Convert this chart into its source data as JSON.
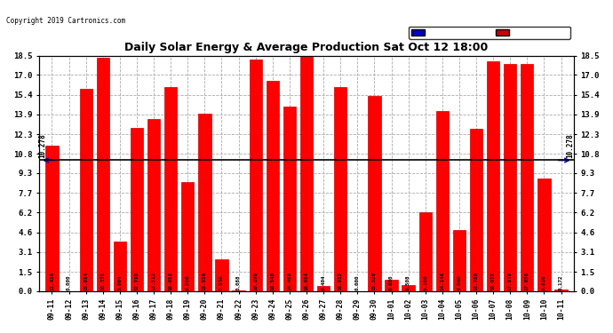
{
  "title": "Daily Solar Energy & Average Production Sat Oct 12 18:00",
  "copyright": "Copyright 2019 Cartronics.com",
  "average_line": 10.278,
  "average_label": "10.278",
  "bar_color": "#FF0000",
  "average_line_color": "#000000",
  "average_arrow_color": "#0000CC",
  "bar_edge_color": "#CC0000",
  "background_color": "#FFFFFF",
  "grid_color": "#AAAAAA",
  "categories": [
    "09-11",
    "09-12",
    "09-13",
    "09-14",
    "09-15",
    "09-16",
    "09-17",
    "09-18",
    "09-19",
    "09-20",
    "09-21",
    "09-22",
    "09-23",
    "09-24",
    "09-25",
    "09-26",
    "09-27",
    "09-28",
    "09-29",
    "09-30",
    "10-01",
    "10-02",
    "10-03",
    "10-04",
    "10-05",
    "10-06",
    "10-07",
    "10-08",
    "10-09",
    "10-10",
    "10-11"
  ],
  "values": [
    11.436,
    0.0,
    15.884,
    18.332,
    3.904,
    12.796,
    13.512,
    16.052,
    8.556,
    13.936,
    2.536,
    0.088,
    18.196,
    16.548,
    14.468,
    18.504,
    0.404,
    16.032,
    0.0,
    15.32,
    0.88,
    0.508,
    6.18,
    14.148,
    4.84,
    12.78,
    18.072,
    17.848,
    17.856,
    8.816,
    0.172
  ],
  "yticks": [
    0.0,
    1.5,
    3.1,
    4.6,
    6.2,
    7.7,
    9.3,
    10.8,
    12.3,
    13.9,
    15.4,
    17.0,
    18.5
  ],
  "ylim": [
    0.0,
    18.5
  ]
}
